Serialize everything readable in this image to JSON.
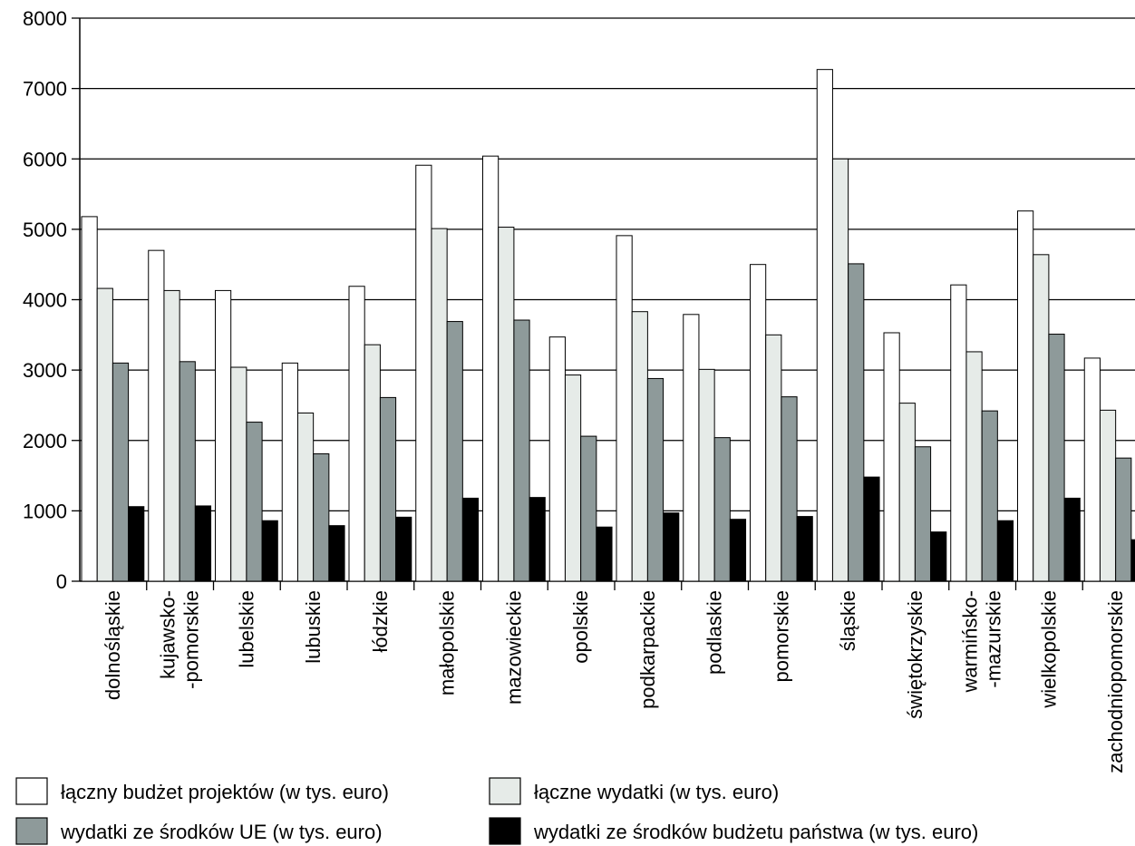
{
  "chart_data": {
    "type": "bar",
    "categories": [
      [
        "dolnośląskie"
      ],
      [
        "kujawsko-",
        "-pomorskie"
      ],
      [
        "lubelskie"
      ],
      [
        "lubuskie"
      ],
      [
        "łódzkie"
      ],
      [
        "małopolskie"
      ],
      [
        "mazowieckie"
      ],
      [
        "opolskie"
      ],
      [
        "podkarpackie"
      ],
      [
        "podlaskie"
      ],
      [
        "pomorskie"
      ],
      [
        "śląskie"
      ],
      [
        "świętokrzyskie"
      ],
      [
        "warmińsko-",
        "-mazurskie"
      ],
      [
        "wielkopolskie"
      ],
      [
        "zachodniopomorskie"
      ]
    ],
    "series": [
      {
        "name": "łączny budżet projektów (w tys. euro)",
        "color": "#ffffff",
        "values": [
          5180,
          4700,
          4130,
          3100,
          4190,
          5910,
          6040,
          3470,
          4910,
          3790,
          4500,
          7270,
          3530,
          4210,
          5260,
          3170
        ]
      },
      {
        "name": "łączne wydatki (w tys. euro)",
        "color": "#e6ebe8",
        "values": [
          4160,
          4130,
          3040,
          2390,
          3360,
          5010,
          5030,
          2930,
          3830,
          3010,
          3500,
          6000,
          2530,
          3260,
          4640,
          2430
        ]
      },
      {
        "name": "wydatki ze środków UE (w tys. euro)",
        "color": "#8e9a9a",
        "values": [
          3100,
          3120,
          2260,
          1810,
          2610,
          3690,
          3710,
          2060,
          2880,
          2040,
          2620,
          4510,
          1910,
          2420,
          3510,
          1750
        ]
      },
      {
        "name": "wydatki ze środków budżetu państwa (w tys. euro)",
        "color": "#000000",
        "values": [
          1060,
          1070,
          860,
          790,
          910,
          1180,
          1190,
          770,
          970,
          880,
          920,
          1480,
          700,
          860,
          1180,
          590
        ]
      }
    ],
    "y_ticks": [
      0,
      1000,
      2000,
      3000,
      4000,
      5000,
      6000,
      7000,
      8000
    ],
    "ylim": [
      0,
      8000
    ],
    "grid": true,
    "legend_position": "bottom-left"
  }
}
